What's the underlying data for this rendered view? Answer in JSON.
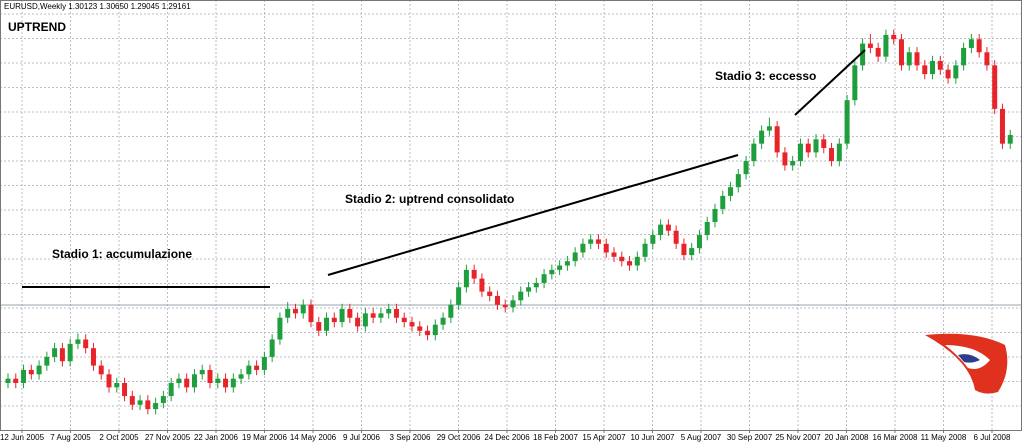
{
  "chart_data": {
    "type": "candlestick",
    "header": "EURUSD,Weekly  1.30123 1.30650 1.29045 1.29161",
    "title": "UPTREND",
    "annotations": [
      "Stadio 1: accumulazione",
      "Stadio 2: uptrend consolidato",
      "Stadio 3: eccesso"
    ],
    "x_tick_labels": [
      "12 Jun 2005",
      "7 Aug 2005",
      "2 Oct 2005",
      "27 Nov 2005",
      "22 Jan 2006",
      "19 Mar 2006",
      "14 May 2006",
      "9 Jul 2006",
      "3 Sep 2006",
      "29 Oct 2006",
      "24 Dec 2006",
      "18 Feb 2007",
      "15 Apr 2007",
      "10 Jun 2007",
      "5 Aug 2007",
      "30 Sep 2007",
      "25 Nov 2007",
      "20 Jan 2008",
      "16 Mar 2008",
      "11 May 2008",
      "6 Jul 2008"
    ],
    "ylim": [
      1.141,
      1.619
    ],
    "grid": true,
    "up_color": "#1e9e3c",
    "down_color": "#e8242b",
    "ohlc": [
      [
        1.195,
        1.206,
        1.189,
        1.2
      ],
      [
        1.2,
        1.206,
        1.189,
        1.195
      ],
      [
        1.195,
        1.216,
        1.189,
        1.21
      ],
      [
        1.21,
        1.216,
        1.199,
        1.205
      ],
      [
        1.205,
        1.221,
        1.199,
        1.215
      ],
      [
        1.215,
        1.231,
        1.209,
        1.225
      ],
      [
        1.225,
        1.241,
        1.219,
        1.235
      ],
      [
        1.235,
        1.241,
        1.214,
        1.22
      ],
      [
        1.22,
        1.246,
        1.214,
        1.24
      ],
      [
        1.24,
        1.252,
        1.234,
        1.245
      ],
      [
        1.245,
        1.251,
        1.229,
        1.235
      ],
      [
        1.235,
        1.241,
        1.209,
        1.215
      ],
      [
        1.215,
        1.221,
        1.199,
        1.205
      ],
      [
        1.205,
        1.211,
        1.184,
        1.19
      ],
      [
        1.19,
        1.201,
        1.184,
        1.195
      ],
      [
        1.195,
        1.201,
        1.174,
        1.18
      ],
      [
        1.18,
        1.186,
        1.164,
        1.17
      ],
      [
        1.17,
        1.181,
        1.164,
        1.175
      ],
      [
        1.175,
        1.181,
        1.159,
        1.165
      ],
      [
        1.165,
        1.178,
        1.159,
        1.172
      ],
      [
        1.172,
        1.186,
        1.166,
        1.18
      ],
      [
        1.18,
        1.201,
        1.174,
        1.195
      ],
      [
        1.195,
        1.206,
        1.189,
        1.2
      ],
      [
        1.2,
        1.206,
        1.184,
        1.19
      ],
      [
        1.19,
        1.211,
        1.184,
        1.205
      ],
      [
        1.205,
        1.216,
        1.199,
        1.21
      ],
      [
        1.21,
        1.216,
        1.189,
        1.195
      ],
      [
        1.195,
        1.206,
        1.189,
        1.2
      ],
      [
        1.2,
        1.206,
        1.184,
        1.19
      ],
      [
        1.19,
        1.206,
        1.184,
        1.2
      ],
      [
        1.2,
        1.211,
        1.194,
        1.205
      ],
      [
        1.205,
        1.221,
        1.199,
        1.215
      ],
      [
        1.215,
        1.221,
        1.204,
        1.21
      ],
      [
        1.21,
        1.231,
        1.204,
        1.225
      ],
      [
        1.225,
        1.251,
        1.219,
        1.245
      ],
      [
        1.245,
        1.276,
        1.239,
        1.27
      ],
      [
        1.27,
        1.288,
        1.264,
        1.28
      ],
      [
        1.28,
        1.286,
        1.269,
        1.275
      ],
      [
        1.275,
        1.291,
        1.269,
        1.285
      ],
      [
        1.285,
        1.291,
        1.259,
        1.265
      ],
      [
        1.265,
        1.271,
        1.249,
        1.255
      ],
      [
        1.255,
        1.276,
        1.249,
        1.27
      ],
      [
        1.27,
        1.276,
        1.259,
        1.265
      ],
      [
        1.265,
        1.286,
        1.259,
        1.28
      ],
      [
        1.28,
        1.286,
        1.264,
        1.27
      ],
      [
        1.27,
        1.276,
        1.254,
        1.26
      ],
      [
        1.26,
        1.281,
        1.254,
        1.275
      ],
      [
        1.275,
        1.281,
        1.264,
        1.27
      ],
      [
        1.27,
        1.281,
        1.264,
        1.275
      ],
      [
        1.275,
        1.286,
        1.269,
        1.28
      ],
      [
        1.28,
        1.286,
        1.264,
        1.27
      ],
      [
        1.27,
        1.276,
        1.259,
        1.265
      ],
      [
        1.265,
        1.271,
        1.254,
        1.26
      ],
      [
        1.26,
        1.266,
        1.249,
        1.255
      ],
      [
        1.255,
        1.261,
        1.244,
        1.25
      ],
      [
        1.25,
        1.268,
        1.244,
        1.262
      ],
      [
        1.262,
        1.276,
        1.256,
        1.27
      ],
      [
        1.27,
        1.291,
        1.264,
        1.285
      ],
      [
        1.285,
        1.311,
        1.279,
        1.305
      ],
      [
        1.305,
        1.331,
        1.299,
        1.325
      ],
      [
        1.325,
        1.331,
        1.309,
        1.315
      ],
      [
        1.315,
        1.321,
        1.294,
        1.3
      ],
      [
        1.3,
        1.306,
        1.289,
        1.295
      ],
      [
        1.295,
        1.301,
        1.279,
        1.285
      ],
      [
        1.285,
        1.291,
        1.276,
        1.282
      ],
      [
        1.282,
        1.296,
        1.276,
        1.29
      ],
      [
        1.29,
        1.306,
        1.284,
        1.3
      ],
      [
        1.3,
        1.311,
        1.294,
        1.305
      ],
      [
        1.305,
        1.316,
        1.299,
        1.31
      ],
      [
        1.31,
        1.326,
        1.304,
        1.32
      ],
      [
        1.32,
        1.331,
        1.314,
        1.325
      ],
      [
        1.325,
        1.336,
        1.319,
        1.33
      ],
      [
        1.33,
        1.341,
        1.324,
        1.335
      ],
      [
        1.335,
        1.351,
        1.329,
        1.345
      ],
      [
        1.345,
        1.361,
        1.339,
        1.355
      ],
      [
        1.355,
        1.366,
        1.349,
        1.36
      ],
      [
        1.36,
        1.366,
        1.349,
        1.355
      ],
      [
        1.355,
        1.361,
        1.339,
        1.345
      ],
      [
        1.345,
        1.351,
        1.334,
        1.34
      ],
      [
        1.34,
        1.346,
        1.329,
        1.335
      ],
      [
        1.335,
        1.341,
        1.324,
        1.33
      ],
      [
        1.33,
        1.346,
        1.324,
        1.34
      ],
      [
        1.34,
        1.361,
        1.334,
        1.355
      ],
      [
        1.355,
        1.371,
        1.349,
        1.365
      ],
      [
        1.365,
        1.383,
        1.359,
        1.377
      ],
      [
        1.377,
        1.383,
        1.364,
        1.37
      ],
      [
        1.37,
        1.376,
        1.349,
        1.355
      ],
      [
        1.355,
        1.361,
        1.336,
        1.342
      ],
      [
        1.342,
        1.356,
        1.336,
        1.35
      ],
      [
        1.35,
        1.371,
        1.344,
        1.365
      ],
      [
        1.365,
        1.386,
        1.359,
        1.38
      ],
      [
        1.38,
        1.401,
        1.374,
        1.395
      ],
      [
        1.395,
        1.416,
        1.389,
        1.41
      ],
      [
        1.41,
        1.426,
        1.404,
        1.42
      ],
      [
        1.42,
        1.441,
        1.414,
        1.435
      ],
      [
        1.435,
        1.456,
        1.429,
        1.45
      ],
      [
        1.45,
        1.476,
        1.444,
        1.47
      ],
      [
        1.47,
        1.491,
        1.464,
        1.485
      ],
      [
        1.485,
        1.5,
        1.479,
        1.49
      ],
      [
        1.49,
        1.496,
        1.454,
        1.46
      ],
      [
        1.46,
        1.466,
        1.439,
        1.445
      ],
      [
        1.445,
        1.456,
        1.439,
        1.45
      ],
      [
        1.45,
        1.476,
        1.444,
        1.47
      ],
      [
        1.47,
        1.476,
        1.454,
        1.46
      ],
      [
        1.46,
        1.481,
        1.454,
        1.475
      ],
      [
        1.475,
        1.481,
        1.459,
        1.465
      ],
      [
        1.465,
        1.471,
        1.444,
        1.45
      ],
      [
        1.45,
        1.476,
        1.444,
        1.47
      ],
      [
        1.47,
        1.526,
        1.464,
        1.52
      ],
      [
        1.52,
        1.566,
        1.514,
        1.56
      ],
      [
        1.56,
        1.591,
        1.554,
        1.585
      ],
      [
        1.585,
        1.596,
        1.574,
        1.58
      ],
      [
        1.58,
        1.586,
        1.564,
        1.57
      ],
      [
        1.57,
        1.601,
        1.564,
        1.595
      ],
      [
        1.595,
        1.601,
        1.584,
        1.59
      ],
      [
        1.59,
        1.596,
        1.554,
        1.56
      ],
      [
        1.56,
        1.581,
        1.554,
        1.575
      ],
      [
        1.575,
        1.581,
        1.554,
        1.56
      ],
      [
        1.56,
        1.566,
        1.544,
        1.55
      ],
      [
        1.55,
        1.571,
        1.544,
        1.565
      ],
      [
        1.565,
        1.571,
        1.549,
        1.555
      ],
      [
        1.555,
        1.561,
        1.539,
        1.545
      ],
      [
        1.545,
        1.566,
        1.539,
        1.56
      ],
      [
        1.56,
        1.586,
        1.554,
        1.58
      ],
      [
        1.58,
        1.596,
        1.574,
        1.59
      ],
      [
        1.59,
        1.596,
        1.569,
        1.575
      ],
      [
        1.575,
        1.581,
        1.554,
        1.56
      ],
      [
        1.56,
        1.566,
        1.504,
        1.51
      ],
      [
        1.51,
        1.516,
        1.464,
        1.47
      ],
      [
        1.47,
        1.486,
        1.464,
        1.48
      ]
    ]
  }
}
